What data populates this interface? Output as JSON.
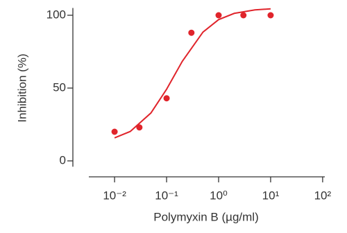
{
  "chart_data": {
    "type": "scatter",
    "xlabel": "Polymyxin B (µg/ml)",
    "ylabel": "Inhibition (%)",
    "xscale": "log",
    "xlim": [
      0.0032,
      110
    ],
    "ylim": [
      -4,
      105
    ],
    "xticks": [
      {
        "value": 0.01,
        "label": "10⁻²"
      },
      {
        "value": 0.1,
        "label": "10⁻¹"
      },
      {
        "value": 1,
        "label": "10⁰"
      },
      {
        "value": 10,
        "label": "10¹"
      },
      {
        "value": 100,
        "label": "10²"
      }
    ],
    "yticks": [
      0,
      50,
      100
    ],
    "series": [
      {
        "type": "scatter",
        "color": "#e0242b",
        "x": [
          0.01,
          0.03,
          0.1,
          0.3,
          1,
          3,
          10
        ],
        "values": [
          20,
          23,
          43,
          88,
          100,
          100,
          100
        ]
      },
      {
        "type": "line",
        "color": "#e0242b",
        "x": [
          0.01,
          0.02,
          0.05,
          0.1,
          0.2,
          0.5,
          1,
          2,
          5,
          10
        ],
        "values": [
          15.8,
          20.2,
          32.9,
          49.2,
          68.3,
          88.4,
          97.0,
          101.3,
          103.7,
          104.4
        ]
      }
    ]
  }
}
